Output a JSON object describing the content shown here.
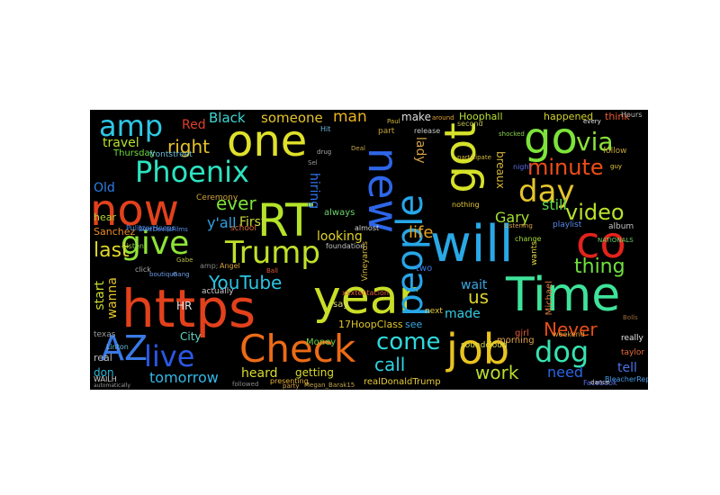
{
  "words": [
    {
      "text": "https",
      "color": "#e2411c"
    },
    {
      "text": "year",
      "color": "#c9df27"
    },
    {
      "text": "Time",
      "color": "#3ee39a"
    },
    {
      "text": "RT",
      "color": "#b4e32a"
    },
    {
      "text": "now",
      "color": "#e2411c"
    },
    {
      "text": "one",
      "color": "#dfe12a"
    },
    {
      "text": "will",
      "color": "#29a8e6"
    },
    {
      "text": "co",
      "color": "#e2231c"
    },
    {
      "text": "go",
      "color": "#7de33a"
    },
    {
      "text": "job",
      "color": "#e9c41f"
    },
    {
      "text": "Check",
      "color": "#ec6b16"
    },
    {
      "text": "new",
      "color": "#2e66e8"
    },
    {
      "text": "got",
      "color": "#d6e22a"
    },
    {
      "text": "people",
      "color": "#27a6e8"
    },
    {
      "text": "give",
      "color": "#8fe237"
    },
    {
      "text": "Phoenix",
      "color": "#2ce3c0"
    },
    {
      "text": "Trump",
      "color": "#c0e02b"
    },
    {
      "text": "AZ",
      "color": "#3a7ae6"
    },
    {
      "text": "live",
      "color": "#2a58e6"
    },
    {
      "text": "dog",
      "color": "#38e2b0"
    },
    {
      "text": "come",
      "color": "#2fd9dc"
    },
    {
      "text": "amp",
      "color": "#2ec8e6"
    },
    {
      "text": "day",
      "color": "#e3c52a"
    },
    {
      "text": "minute",
      "color": "#ee4d17"
    },
    {
      "text": "via",
      "color": "#8de13a"
    },
    {
      "text": "video",
      "color": "#b8e22c"
    },
    {
      "text": "thing",
      "color": "#6fe03d"
    },
    {
      "text": "Never",
      "color": "#e74e17"
    },
    {
      "text": "call",
      "color": "#2fd2e2"
    },
    {
      "text": "work",
      "color": "#b7de2e"
    },
    {
      "text": "YouTube",
      "color": "#2cc4e4"
    },
    {
      "text": "life",
      "color": "#e8a320"
    },
    {
      "text": "last",
      "color": "#dfd72a"
    },
    {
      "text": "right",
      "color": "#e6c22a"
    },
    {
      "text": "ever",
      "color": "#7ee23a"
    },
    {
      "text": "tomorrow",
      "color": "#33b8e6"
    },
    {
      "text": "heard",
      "color": "#d8dd2b"
    },
    {
      "text": "Gary",
      "color": "#a7e033"
    },
    {
      "text": "Black",
      "color": "#3fd6d3"
    },
    {
      "text": "someone",
      "color": "#e3c52a"
    },
    {
      "text": "man",
      "color": "#e8b21f"
    },
    {
      "text": "travel",
      "color": "#b8e22c"
    },
    {
      "text": "Thursday",
      "color": "#6fdc3e"
    },
    {
      "text": "Red",
      "color": "#e0402a"
    },
    {
      "text": "Old",
      "color": "#2c7ee8"
    },
    {
      "text": "y'all",
      "color": "#2fa2e2"
    },
    {
      "text": "First",
      "color": "#ccd93a"
    },
    {
      "text": "looking",
      "color": "#e0d42a"
    },
    {
      "text": "hiring",
      "color": "#2f74e6"
    },
    {
      "text": "lady",
      "color": "#d2a04a"
    },
    {
      "text": "made",
      "color": "#36cbe2"
    },
    {
      "text": "us",
      "color": "#dcd22a"
    },
    {
      "text": "wait",
      "color": "#3aa8e2"
    },
    {
      "text": "still",
      "color": "#5ad94a"
    },
    {
      "text": "need",
      "color": "#2c66e2"
    },
    {
      "text": "tell",
      "color": "#4a72e6"
    },
    {
      "text": "make",
      "color": "#dcdcdc"
    },
    {
      "text": "Hoophall",
      "color": "#b9e033"
    },
    {
      "text": "happened",
      "color": "#d2d22c"
    },
    {
      "text": "think",
      "color": "#e8582e"
    },
    {
      "text": "start",
      "color": "#c7dd2e"
    },
    {
      "text": "wanna",
      "color": "#e3c52a"
    },
    {
      "text": "don",
      "color": "#29b8d8"
    },
    {
      "text": "City",
      "color": "#5bd5c2"
    },
    {
      "text": "HR",
      "color": "#e6e6e6"
    },
    {
      "text": "Sanchez",
      "color": "#ea8c2a"
    },
    {
      "text": "getting",
      "color": "#dbdb2b"
    },
    {
      "text": "17HoopClass",
      "color": "#e0c52a"
    },
    {
      "text": "see",
      "color": "#3aa8e2"
    },
    {
      "text": "breaux",
      "color": "#d6b63a"
    },
    {
      "text": "Money",
      "color": "#6fcf44"
    },
    {
      "text": "morning",
      "color": "#e2a24a"
    },
    {
      "text": "realDonaldTrump",
      "color": "#e6c93a"
    },
    {
      "text": "girl",
      "color": "#e05a3a"
    },
    {
      "text": "hear",
      "color": "#b2d23a"
    },
    {
      "text": "real",
      "color": "#bbbbbb"
    },
    {
      "text": "say",
      "color": "#dddd77"
    },
    {
      "text": "Michael",
      "color": "#e67c3a"
    },
    {
      "text": "texas",
      "color": "#9e9e9e"
    },
    {
      "text": "album",
      "color": "#c2c2c2"
    },
    {
      "text": "playlist",
      "color": "#5a8ae8"
    },
    {
      "text": "always",
      "color": "#6ad36a"
    },
    {
      "text": "school",
      "color": "#d86a3a"
    },
    {
      "text": "Ceremony",
      "color": "#cfa23a"
    },
    {
      "text": "frontstreet",
      "color": "#6abada"
    },
    {
      "text": "two",
      "color": "#3a7ae6"
    },
    {
      "text": "follow",
      "color": "#c3a23a"
    },
    {
      "text": "really",
      "color": "#e6e6e6"
    },
    {
      "text": "taylor",
      "color": "#ea6b3a"
    },
    {
      "text": "soundcloud",
      "color": "#dcdc4a"
    },
    {
      "text": "release",
      "color": "#c8c8c8"
    },
    {
      "text": "Facebook",
      "color": "#5a6ee0"
    },
    {
      "text": "BleacherReport",
      "color": "#4a9ae6"
    },
    {
      "text": "second",
      "color": "#bcbc4a"
    },
    {
      "text": "weekend",
      "color": "#e0a23a"
    },
    {
      "text": "Vineyards",
      "color": "#d6b63a"
    },
    {
      "text": "foundation",
      "color": "#c2c2c2"
    },
    {
      "text": "almost",
      "color": "#d8d8d8"
    },
    {
      "text": "change",
      "color": "#a6d83a"
    },
    {
      "text": "next",
      "color": "#e6c93a"
    },
    {
      "text": "part",
      "color": "#c3a23a"
    },
    {
      "text": "click",
      "color": "#aaaaaa"
    },
    {
      "text": "Listen",
      "color": "#8ad24a"
    },
    {
      "text": "wants",
      "color": "#e0d44a"
    },
    {
      "text": "Angel",
      "color": "#d6a23a"
    },
    {
      "text": "actually",
      "color": "#c8c8c8"
    },
    {
      "text": "Linton",
      "color": "#6abada"
    },
    {
      "text": "amp;",
      "color": "#888888"
    },
    {
      "text": "PulitzerHoops",
      "color": "#4a8ae6"
    },
    {
      "text": "xxxtentacion",
      "color": "#e05a3a"
    },
    {
      "text": "night",
      "color": "#5a6ee0"
    },
    {
      "text": "Megan_Barak15",
      "color": "#c2a24a"
    },
    {
      "text": "WAILH",
      "color": "#d4d4d4"
    },
    {
      "text": "automatically",
      "color": "#9a9a9a"
    },
    {
      "text": "presenting",
      "color": "#e6b23a"
    },
    {
      "text": "followed",
      "color": "#8a8a8a"
    },
    {
      "text": "boutique",
      "color": "#6a9ae6"
    },
    {
      "text": "Bolls",
      "color": "#9a6a3a"
    },
    {
      "text": "BlueDevilsFilms",
      "color": "#5a8ae8"
    },
    {
      "text": "NATIONALS",
      "color": "#6ad36a"
    },
    {
      "text": "participate",
      "color": "#d6b63a"
    },
    {
      "text": "nothing",
      "color": "#e6c93a"
    },
    {
      "text": "Listening",
      "color": "#d8a24a"
    },
    {
      "text": "Hours",
      "color": "#bbbbbb"
    },
    {
      "text": "dance",
      "color": "#c8c8c8"
    },
    {
      "text": "around",
      "color": "#e0a23a"
    },
    {
      "text": "every",
      "color": "#e6e6e6"
    },
    {
      "text": "shocked",
      "color": "#8ad24a"
    },
    {
      "text": "guy",
      "color": "#e6c93a"
    },
    {
      "text": "Paul",
      "color": "#d6b63a"
    },
    {
      "text": "drug",
      "color": "#aaaaaa"
    },
    {
      "text": "Deal",
      "color": "#c2a24a"
    },
    {
      "text": "Hit",
      "color": "#6abada"
    },
    {
      "text": "Sel",
      "color": "#9a9a9a"
    },
    {
      "text": "party",
      "color": "#d8a24a"
    },
    {
      "text": "Ball",
      "color": "#e05a3a"
    },
    {
      "text": "Gabe",
      "color": "#bcbc4a"
    },
    {
      "text": "Gang",
      "color": "#6a9ae6"
    }
  ]
}
